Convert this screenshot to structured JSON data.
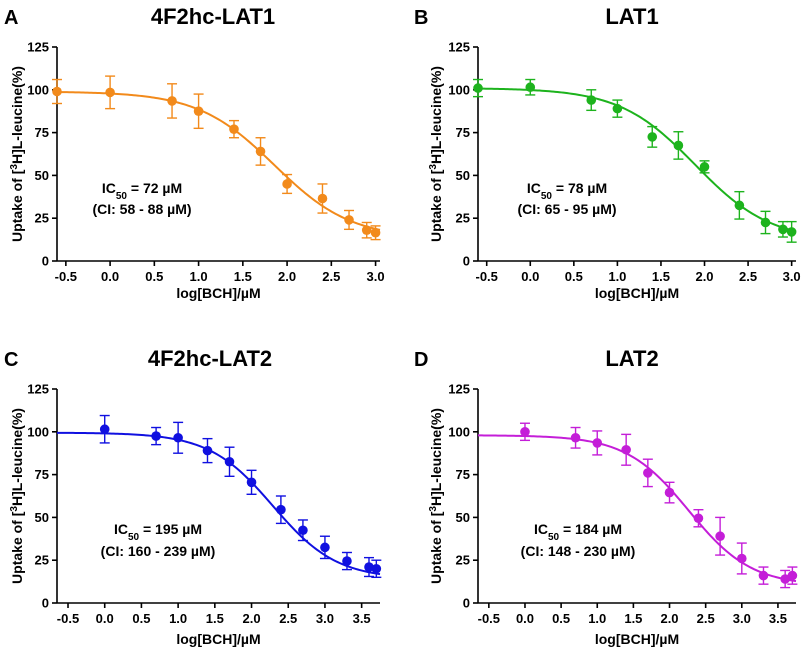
{
  "y_axis_label": {
    "prefix": "Uptake of [",
    "superscript": "3",
    "suffix": "H]L-leucine(%)"
  },
  "x_axis_label": "log[BCH]/µM",
  "chart_data": [
    {
      "type": "scatter",
      "panel_letter": "A",
      "title": "4F2hc-LAT1",
      "color": "#F28A1B",
      "xlim": [
        -0.6,
        3.05
      ],
      "ylim": [
        0,
        125
      ],
      "xticks": [
        -0.5,
        0.0,
        0.5,
        1.0,
        1.5,
        2.0,
        2.5,
        3.0
      ],
      "xtick_labels": [
        "-0.5",
        "0.0",
        "0.5",
        "1.0",
        "1.5",
        "2.0",
        "2.5",
        "3.0"
      ],
      "yticks": [
        0,
        25,
        50,
        75,
        100,
        125
      ],
      "ytick_labels": [
        "0",
        "25",
        "50",
        "75",
        "100",
        "125"
      ],
      "x": [
        -0.6,
        0.0,
        0.7,
        1.0,
        1.4,
        1.7,
        2.0,
        2.4,
        2.7,
        2.9,
        3.0
      ],
      "y": [
        99,
        98.5,
        93.5,
        87.5,
        77,
        64,
        45,
        36.5,
        24,
        18,
        16.5
      ],
      "err": [
        7,
        9.5,
        10,
        10,
        5,
        8,
        5.5,
        8.5,
        5.5,
        4.5,
        4
      ],
      "fit": {
        "top": 99,
        "bottom": 13,
        "logIC50": 1.857,
        "hill": 1
      },
      "ic50_label": {
        "prefix": "IC",
        "sub": "50",
        "value": " = 72 µM"
      },
      "ci_label": "(CI: 58 - 88 µM)"
    },
    {
      "type": "scatter",
      "panel_letter": "B",
      "title": "LAT1",
      "color": "#1DB31D",
      "xlim": [
        -0.6,
        3.05
      ],
      "ylim": [
        0,
        125
      ],
      "xticks": [
        -0.5,
        0.0,
        0.5,
        1.0,
        1.5,
        2.0,
        2.5,
        3.0
      ],
      "xtick_labels": [
        "-0.5",
        "0.0",
        "0.5",
        "1.0",
        "1.5",
        "2.0",
        "2.5",
        "3.0"
      ],
      "yticks": [
        0,
        25,
        50,
        75,
        100,
        125
      ],
      "ytick_labels": [
        "0",
        "25",
        "50",
        "75",
        "100",
        "125"
      ],
      "x": [
        -0.6,
        0.0,
        0.7,
        1.0,
        1.4,
        1.7,
        2.0,
        2.4,
        2.7,
        2.9,
        3.0
      ],
      "y": [
        101,
        101.5,
        94,
        89,
        72.5,
        67.5,
        55,
        32.5,
        22.5,
        18.5,
        17
      ],
      "err": [
        5,
        4.5,
        6,
        5,
        6,
        8,
        3.5,
        8,
        6.5,
        4.5,
        6
      ],
      "fit": {
        "top": 101,
        "bottom": 11.5,
        "logIC50": 1.892,
        "hill": 1
      },
      "ic50_label": {
        "prefix": "IC",
        "sub": "50",
        "value": " = 78 µM"
      },
      "ci_label": "(CI: 65 - 95 µM)"
    },
    {
      "type": "scatter",
      "panel_letter": "C",
      "title": "4F2hc-LAT2",
      "color": "#1010E0",
      "xlim": [
        -0.65,
        3.75
      ],
      "ylim": [
        0,
        125
      ],
      "xticks": [
        -0.5,
        0.0,
        0.5,
        1.0,
        1.5,
        2.0,
        2.5,
        3.0,
        3.5
      ],
      "xtick_labels": [
        "-0.5",
        "0.0",
        "0.5",
        "1.0",
        "1.5",
        "2.0",
        "2.5",
        "3.0",
        "3.5"
      ],
      "yticks": [
        0,
        25,
        50,
        75,
        100,
        125
      ],
      "ytick_labels": [
        "0",
        "25",
        "50",
        "75",
        "100",
        "125"
      ],
      "x": [
        0.0,
        0.7,
        1.0,
        1.4,
        1.7,
        2.0,
        2.4,
        2.7,
        3.0,
        3.3,
        3.6,
        3.7
      ],
      "y": [
        101.5,
        97.5,
        96.5,
        89,
        82.5,
        70.5,
        54.5,
        42.5,
        32.5,
        24.5,
        21,
        20
      ],
      "err": [
        8,
        5,
        9,
        7,
        8.5,
        7,
        8,
        6,
        6.5,
        5,
        5.5,
        5
      ],
      "fit": {
        "top": 99.5,
        "bottom": 14,
        "logIC50": 2.29,
        "hill": 1
      },
      "ic50_label": {
        "prefix": "IC",
        "sub": "50",
        "value": " = 195 µM"
      },
      "ci_label": "(CI: 160 - 239 µM)"
    },
    {
      "type": "scatter",
      "panel_letter": "D",
      "title": "LAT2",
      "color": "#C41ED8",
      "xlim": [
        -0.65,
        3.75
      ],
      "ylim": [
        0,
        125
      ],
      "xticks": [
        -0.5,
        0.0,
        0.5,
        1.0,
        1.5,
        2.0,
        2.5,
        3.0,
        3.5
      ],
      "xtick_labels": [
        "-0.5",
        "0.0",
        "0.5",
        "1.0",
        "1.5",
        "2.0",
        "2.5",
        "3.0",
        "3.5"
      ],
      "yticks": [
        0,
        25,
        50,
        75,
        100,
        125
      ],
      "ytick_labels": [
        "0",
        "25",
        "50",
        "75",
        "100",
        "125"
      ],
      "x": [
        0.0,
        0.7,
        1.0,
        1.4,
        1.7,
        2.0,
        2.4,
        2.7,
        3.0,
        3.3,
        3.6,
        3.7
      ],
      "y": [
        100,
        96.5,
        93.5,
        89.5,
        76,
        64.5,
        49.5,
        39,
        26,
        16,
        14,
        16
      ],
      "err": [
        5,
        6,
        7,
        9,
        8,
        6,
        5,
        11,
        9,
        5,
        5,
        5
      ],
      "fit": {
        "top": 98,
        "bottom": 10,
        "logIC50": 2.265,
        "hill": 1
      },
      "ic50_label": {
        "prefix": "IC",
        "sub": "50",
        "value": " = 184 µM"
      },
      "ci_label": "(CI: 148 - 230 µM)"
    }
  ]
}
